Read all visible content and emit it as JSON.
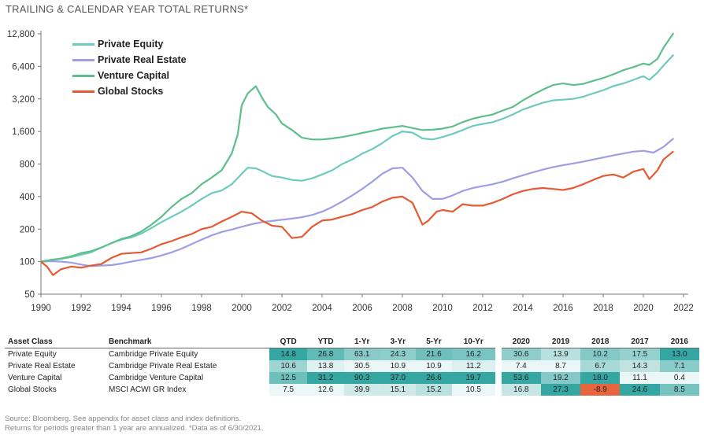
{
  "header": {
    "title": "TRAILING & CALENDAR YEAR TOTAL RETURNS*"
  },
  "chart_data": {
    "type": "line",
    "y_scale": "log",
    "ylim": [
      50,
      12800
    ],
    "yticks": [
      50,
      100,
      200,
      400,
      800,
      1600,
      3200,
      6400,
      12800
    ],
    "ytick_labels": [
      "50",
      "100",
      "200",
      "400",
      "800",
      "1,600",
      "3,200",
      "6,400",
      "12,800"
    ],
    "xlim": [
      1990,
      2022
    ],
    "xticks": [
      1990,
      1992,
      1994,
      1996,
      1998,
      2000,
      2002,
      2004,
      2006,
      2008,
      2010,
      2012,
      2014,
      2016,
      2018,
      2020,
      2022
    ],
    "legend_position": "top-left",
    "grid": false,
    "series": [
      {
        "name": "Private Equity",
        "color": "#6dcbbd",
        "points": [
          [
            1990,
            100
          ],
          [
            1990.5,
            104
          ],
          [
            1991,
            106
          ],
          [
            1991.5,
            110
          ],
          [
            1992,
            116
          ],
          [
            1992.5,
            122
          ],
          [
            1993,
            135
          ],
          [
            1993.5,
            148
          ],
          [
            1994,
            160
          ],
          [
            1994.5,
            168
          ],
          [
            1995,
            182
          ],
          [
            1995.5,
            205
          ],
          [
            1996,
            232
          ],
          [
            1996.5,
            260
          ],
          [
            1997,
            290
          ],
          [
            1997.5,
            330
          ],
          [
            1998,
            380
          ],
          [
            1998.5,
            430
          ],
          [
            1999,
            455
          ],
          [
            1999.5,
            520
          ],
          [
            2000,
            650
          ],
          [
            2000.3,
            740
          ],
          [
            2000.7,
            730
          ],
          [
            2001,
            690
          ],
          [
            2001.5,
            620
          ],
          [
            2002,
            600
          ],
          [
            2002.5,
            570
          ],
          [
            2003,
            560
          ],
          [
            2003.5,
            590
          ],
          [
            2004,
            640
          ],
          [
            2004.5,
            700
          ],
          [
            2005,
            800
          ],
          [
            2005.5,
            880
          ],
          [
            2006,
            1000
          ],
          [
            2006.5,
            1100
          ],
          [
            2007,
            1250
          ],
          [
            2007.5,
            1450
          ],
          [
            2008,
            1600
          ],
          [
            2008.5,
            1560
          ],
          [
            2009,
            1380
          ],
          [
            2009.5,
            1350
          ],
          [
            2010,
            1420
          ],
          [
            2010.5,
            1520
          ],
          [
            2011,
            1650
          ],
          [
            2011.5,
            1800
          ],
          [
            2012,
            1880
          ],
          [
            2012.5,
            1950
          ],
          [
            2013,
            2100
          ],
          [
            2013.5,
            2300
          ],
          [
            2014,
            2550
          ],
          [
            2014.5,
            2750
          ],
          [
            2015,
            2950
          ],
          [
            2015.5,
            3100
          ],
          [
            2016,
            3150
          ],
          [
            2016.5,
            3200
          ],
          [
            2017,
            3350
          ],
          [
            2017.5,
            3600
          ],
          [
            2018,
            3850
          ],
          [
            2018.5,
            4200
          ],
          [
            2019,
            4450
          ],
          [
            2019.5,
            4800
          ],
          [
            2020,
            5200
          ],
          [
            2020.3,
            4800
          ],
          [
            2020.7,
            5600
          ],
          [
            2021,
            6500
          ],
          [
            2021.5,
            8200
          ]
        ]
      },
      {
        "name": "Private Real Estate",
        "color": "#9e9ee8",
        "points": [
          [
            1990,
            100
          ],
          [
            1990.5,
            101
          ],
          [
            1991,
            100
          ],
          [
            1991.5,
            98
          ],
          [
            1992,
            94
          ],
          [
            1992.5,
            91
          ],
          [
            1993,
            92
          ],
          [
            1993.5,
            93
          ],
          [
            1994,
            96
          ],
          [
            1994.5,
            100
          ],
          [
            1995,
            104
          ],
          [
            1995.5,
            108
          ],
          [
            1996,
            114
          ],
          [
            1996.5,
            122
          ],
          [
            1997,
            132
          ],
          [
            1997.5,
            145
          ],
          [
            1998,
            160
          ],
          [
            1998.5,
            175
          ],
          [
            1999,
            188
          ],
          [
            1999.5,
            198
          ],
          [
            2000,
            210
          ],
          [
            2000.5,
            222
          ],
          [
            2001,
            232
          ],
          [
            2001.5,
            238
          ],
          [
            2002,
            244
          ],
          [
            2002.5,
            250
          ],
          [
            2003,
            258
          ],
          [
            2003.5,
            270
          ],
          [
            2004,
            290
          ],
          [
            2004.5,
            320
          ],
          [
            2005,
            360
          ],
          [
            2005.5,
            410
          ],
          [
            2006,
            470
          ],
          [
            2006.5,
            550
          ],
          [
            2007,
            650
          ],
          [
            2007.5,
            730
          ],
          [
            2008,
            740
          ],
          [
            2008.5,
            600
          ],
          [
            2009,
            450
          ],
          [
            2009.5,
            380
          ],
          [
            2010,
            380
          ],
          [
            2010.5,
            410
          ],
          [
            2011,
            450
          ],
          [
            2011.5,
            480
          ],
          [
            2012,
            500
          ],
          [
            2012.5,
            520
          ],
          [
            2013,
            550
          ],
          [
            2013.5,
            590
          ],
          [
            2014,
            630
          ],
          [
            2014.5,
            670
          ],
          [
            2015,
            710
          ],
          [
            2015.5,
            750
          ],
          [
            2016,
            780
          ],
          [
            2016.5,
            810
          ],
          [
            2017,
            840
          ],
          [
            2017.5,
            880
          ],
          [
            2018,
            920
          ],
          [
            2018.5,
            960
          ],
          [
            2019,
            1000
          ],
          [
            2019.5,
            1040
          ],
          [
            2020,
            1060
          ],
          [
            2020.5,
            1020
          ],
          [
            2021,
            1150
          ],
          [
            2021.5,
            1380
          ]
        ]
      },
      {
        "name": "Venture Capital",
        "color": "#5fbf8a",
        "points": [
          [
            1990,
            100
          ],
          [
            1990.5,
            104
          ],
          [
            1991,
            107
          ],
          [
            1991.5,
            112
          ],
          [
            1992,
            120
          ],
          [
            1992.5,
            125
          ],
          [
            1993,
            135
          ],
          [
            1993.5,
            148
          ],
          [
            1994,
            162
          ],
          [
            1994.5,
            172
          ],
          [
            1995,
            190
          ],
          [
            1995.5,
            220
          ],
          [
            1996,
            260
          ],
          [
            1996.5,
            320
          ],
          [
            1997,
            380
          ],
          [
            1997.5,
            430
          ],
          [
            1998,
            520
          ],
          [
            1998.5,
            600
          ],
          [
            1999,
            700
          ],
          [
            1999.5,
            1000
          ],
          [
            1999.8,
            1500
          ],
          [
            2000,
            2800
          ],
          [
            2000.3,
            3600
          ],
          [
            2000.7,
            4200
          ],
          [
            2001,
            3300
          ],
          [
            2001.3,
            2700
          ],
          [
            2001.7,
            2300
          ],
          [
            2002,
            1900
          ],
          [
            2002.5,
            1650
          ],
          [
            2003,
            1400
          ],
          [
            2003.5,
            1350
          ],
          [
            2004,
            1350
          ],
          [
            2004.5,
            1380
          ],
          [
            2005,
            1420
          ],
          [
            2005.5,
            1480
          ],
          [
            2006,
            1550
          ],
          [
            2006.5,
            1620
          ],
          [
            2007,
            1700
          ],
          [
            2007.5,
            1750
          ],
          [
            2008,
            1800
          ],
          [
            2008.5,
            1720
          ],
          [
            2009,
            1650
          ],
          [
            2009.5,
            1660
          ],
          [
            2010,
            1700
          ],
          [
            2010.5,
            1780
          ],
          [
            2011,
            1950
          ],
          [
            2011.5,
            2100
          ],
          [
            2012,
            2200
          ],
          [
            2012.5,
            2300
          ],
          [
            2013,
            2500
          ],
          [
            2013.5,
            2700
          ],
          [
            2014,
            3100
          ],
          [
            2014.5,
            3500
          ],
          [
            2015,
            3900
          ],
          [
            2015.5,
            4300
          ],
          [
            2016,
            4450
          ],
          [
            2016.5,
            4300
          ],
          [
            2017,
            4400
          ],
          [
            2017.5,
            4700
          ],
          [
            2018,
            5000
          ],
          [
            2018.5,
            5400
          ],
          [
            2019,
            5900
          ],
          [
            2019.5,
            6300
          ],
          [
            2020,
            6800
          ],
          [
            2020.3,
            6600
          ],
          [
            2020.7,
            7500
          ],
          [
            2021,
            9500
          ],
          [
            2021.5,
            13000
          ]
        ]
      },
      {
        "name": "Global Stocks",
        "color": "#e45a32",
        "points": [
          [
            1990,
            100
          ],
          [
            1990.3,
            90
          ],
          [
            1990.6,
            75
          ],
          [
            1991,
            85
          ],
          [
            1991.5,
            90
          ],
          [
            1992,
            88
          ],
          [
            1992.5,
            92
          ],
          [
            1993,
            95
          ],
          [
            1993.5,
            108
          ],
          [
            1994,
            118
          ],
          [
            1994.5,
            120
          ],
          [
            1995,
            122
          ],
          [
            1995.5,
            132
          ],
          [
            1996,
            145
          ],
          [
            1996.5,
            155
          ],
          [
            1997,
            168
          ],
          [
            1997.5,
            180
          ],
          [
            1998,
            200
          ],
          [
            1998.5,
            210
          ],
          [
            1999,
            235
          ],
          [
            1999.5,
            260
          ],
          [
            2000,
            290
          ],
          [
            2000.5,
            280
          ],
          [
            2001,
            240
          ],
          [
            2001.5,
            215
          ],
          [
            2002,
            210
          ],
          [
            2002.5,
            165
          ],
          [
            2003,
            170
          ],
          [
            2003.5,
            210
          ],
          [
            2004,
            240
          ],
          [
            2004.5,
            245
          ],
          [
            2005,
            260
          ],
          [
            2005.5,
            275
          ],
          [
            2006,
            300
          ],
          [
            2006.5,
            320
          ],
          [
            2007,
            360
          ],
          [
            2007.5,
            390
          ],
          [
            2008,
            400
          ],
          [
            2008.5,
            350
          ],
          [
            2009,
            220
          ],
          [
            2009.3,
            240
          ],
          [
            2009.7,
            290
          ],
          [
            2010,
            300
          ],
          [
            2010.5,
            290
          ],
          [
            2011,
            340
          ],
          [
            2011.5,
            330
          ],
          [
            2012,
            330
          ],
          [
            2012.5,
            350
          ],
          [
            2013,
            380
          ],
          [
            2013.5,
            420
          ],
          [
            2014,
            450
          ],
          [
            2014.5,
            470
          ],
          [
            2015,
            480
          ],
          [
            2015.5,
            470
          ],
          [
            2016,
            460
          ],
          [
            2016.5,
            480
          ],
          [
            2017,
            520
          ],
          [
            2017.5,
            570
          ],
          [
            2018,
            620
          ],
          [
            2018.5,
            640
          ],
          [
            2019,
            600
          ],
          [
            2019.5,
            680
          ],
          [
            2020,
            720
          ],
          [
            2020.3,
            580
          ],
          [
            2020.7,
            700
          ],
          [
            2021,
            880
          ],
          [
            2021.5,
            1050
          ]
        ]
      }
    ]
  },
  "table": {
    "headers": {
      "asset_class": "Asset Class",
      "benchmark": "Benchmark",
      "trailing": [
        "QTD",
        "YTD",
        "1-Yr",
        "3-Yr",
        "5-Yr",
        "10-Yr"
      ],
      "calendar": [
        "2020",
        "2019",
        "2018",
        "2017",
        "2016"
      ]
    },
    "rows": [
      {
        "asset": "Private Equity",
        "benchmark": "Cambridge Private Equity",
        "trailing": [
          "14.8",
          "26.8",
          "63.1",
          "24.3",
          "21.6",
          "16.2"
        ],
        "calendar": [
          "30.6",
          "13.9",
          "10.2",
          "17.5",
          "13.0"
        ]
      },
      {
        "asset": "Private Real Estate",
        "benchmark": "Cambridge Private Real Estate",
        "trailing": [
          "10.6",
          "13.8",
          "30.5",
          "10.9",
          "10.9",
          "11.2"
        ],
        "calendar": [
          "7.4",
          "8.7",
          "6.7",
          "14.3",
          "7.1"
        ]
      },
      {
        "asset": "Venture Capital",
        "benchmark": "Cambridge Venture Capital",
        "trailing": [
          "12.5",
          "31.2",
          "90.3",
          "37.0",
          "26.6",
          "19.7"
        ],
        "calendar": [
          "53.6",
          "19.2",
          "18.0",
          "11.1",
          "0.4"
        ]
      },
      {
        "asset": "Global Stocks",
        "benchmark": "MSCI ACWI GR Index",
        "trailing": [
          "7.5",
          "12.6",
          "39.9",
          "15.1",
          "15.2",
          "10.5"
        ],
        "calendar": [
          "16.8",
          "27.3",
          "-8.9",
          "24.6",
          "8.5"
        ]
      }
    ],
    "colors": {
      "negative": "#e8643c",
      "low": "#ffffff",
      "high": "#35a7a3"
    }
  },
  "footnote": {
    "line1": "Source: Bloomberg. See appendix for asset class and index definitions.",
    "line2": "Returns for periods greater than 1 year are annualized. *Data as of 6/30/2021."
  }
}
